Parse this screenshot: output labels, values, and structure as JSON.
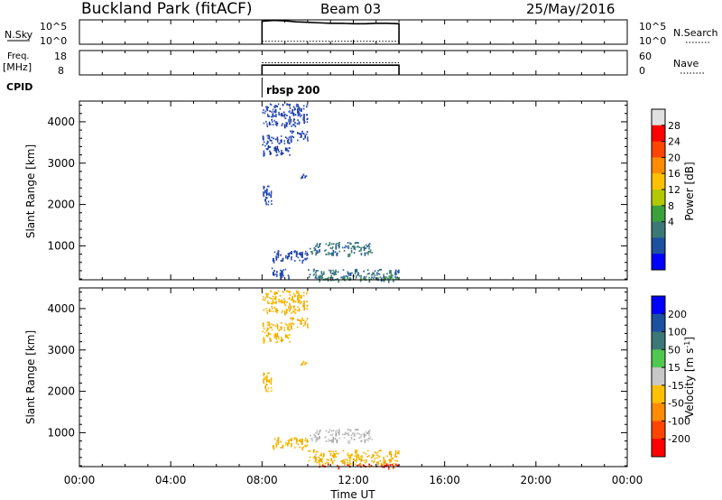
{
  "header": {
    "station": "Buckland Park (fitACF)",
    "beam": "Beam 03",
    "date": "25/May/2016"
  },
  "noise_panel": {
    "left_label": "N.Sky",
    "right_label": "N.Search",
    "left_ticks": [
      "10^5",
      "10^0"
    ],
    "right_ticks": [
      "10^5",
      "10^0"
    ]
  },
  "freq_panel": {
    "left_label_line1": "Freq.",
    "left_label_line2": "[MHz]",
    "right_label": "Nave",
    "left_ticks": [
      "18",
      "8"
    ],
    "right_ticks": [
      "60",
      "0"
    ]
  },
  "cpid_panel": {
    "label": "CPID",
    "program": "rbsp 200"
  },
  "x_axis": {
    "label": "Time UT",
    "ticks": [
      "00:00",
      "04:00",
      "08:00",
      "12:00",
      "16:00",
      "20:00",
      "00:00"
    ]
  },
  "chart_data": [
    {
      "type": "scatter",
      "panel": "power",
      "xlabel": "Time UT",
      "ylabel": "Slant Range [km]",
      "xlim": [
        0,
        24
      ],
      "ylim": [
        180,
        4500
      ],
      "yticks": [
        "1000",
        "2000",
        "3000",
        "4000"
      ],
      "colorbar": {
        "label": "Power [dB]",
        "ticks": [
          "28",
          "24",
          "20",
          "16",
          "12",
          "8",
          "4"
        ],
        "colors": [
          "#e0e0e0",
          "#ff0000",
          "#ff4500",
          "#ff8c00",
          "#ffc000",
          "#b4c800",
          "#3ca03c",
          "#3c7878",
          "#1e50a0",
          "#0000ff"
        ]
      },
      "clusters": [
        {
          "x0": 8.0,
          "x1": 10.0,
          "y0": 3900,
          "y1": 4450,
          "level": "blue"
        },
        {
          "x0": 8.0,
          "x1": 9.2,
          "y0": 3200,
          "y1": 3700,
          "level": "blue"
        },
        {
          "x0": 9.2,
          "x1": 10.0,
          "y0": 3550,
          "y1": 3800,
          "level": "blue"
        },
        {
          "x0": 9.6,
          "x1": 10.0,
          "y0": 2650,
          "y1": 2750,
          "level": "blue"
        },
        {
          "x0": 8.0,
          "x1": 8.4,
          "y0": 2000,
          "y1": 2500,
          "level": "blue"
        },
        {
          "x0": 8.4,
          "x1": 10.0,
          "y0": 650,
          "y1": 900,
          "level": "blue"
        },
        {
          "x0": 10.0,
          "x1": 12.8,
          "y0": 800,
          "y1": 1100,
          "level": "teal"
        },
        {
          "x0": 8.4,
          "x1": 9.2,
          "y0": 250,
          "y1": 500,
          "level": "blue"
        },
        {
          "x0": 10.0,
          "x1": 14.0,
          "y0": 200,
          "y1": 450,
          "level": "teal"
        },
        {
          "x0": 10.4,
          "x1": 14.0,
          "y0": 180,
          "y1": 260,
          "level": "green"
        }
      ]
    },
    {
      "type": "scatter",
      "panel": "velocity",
      "xlabel": "Time UT",
      "ylabel": "Slant Range [km]",
      "xlim": [
        0,
        24
      ],
      "ylim": [
        180,
        4500
      ],
      "yticks": [
        "1000",
        "2000",
        "3000",
        "4000"
      ],
      "colorbar": {
        "label": "Velocity [m s^-1]",
        "ticks": [
          "200",
          "100",
          "50",
          "15",
          "-15",
          "-50",
          "-100",
          "-200"
        ],
        "colors": [
          "#0000ff",
          "#1e50a0",
          "#3c7878",
          "#50c850",
          "#c8c8c8",
          "#ffc000",
          "#ff8c00",
          "#ff4500",
          "#ff0000"
        ]
      },
      "clusters": [
        {
          "x0": 8.0,
          "x1": 10.0,
          "y0": 3900,
          "y1": 4450,
          "level": "amber"
        },
        {
          "x0": 8.0,
          "x1": 9.2,
          "y0": 3200,
          "y1": 3700,
          "level": "amber"
        },
        {
          "x0": 9.2,
          "x1": 10.0,
          "y0": 3550,
          "y1": 3800,
          "level": "amber"
        },
        {
          "x0": 9.6,
          "x1": 10.0,
          "y0": 2650,
          "y1": 2750,
          "level": "amber"
        },
        {
          "x0": 8.0,
          "x1": 8.4,
          "y0": 2000,
          "y1": 2500,
          "level": "amber"
        },
        {
          "x0": 8.4,
          "x1": 10.0,
          "y0": 650,
          "y1": 900,
          "level": "amber"
        },
        {
          "x0": 10.0,
          "x1": 12.8,
          "y0": 800,
          "y1": 1100,
          "level": "gray"
        },
        {
          "x0": 10.0,
          "x1": 14.0,
          "y0": 250,
          "y1": 600,
          "level": "amber"
        },
        {
          "x0": 10.4,
          "x1": 14.0,
          "y0": 180,
          "y1": 260,
          "level": "red"
        }
      ]
    }
  ],
  "noise_series": {
    "x_start": 8.0,
    "x_end": 14.0,
    "sky_level_log": [
      4.7,
      4.9,
      4.8,
      4.6,
      4.5,
      4.4,
      4.3,
      4.3,
      4.2,
      4.2,
      4.3,
      4.3,
      4.2
    ],
    "search_level_log": 0.6
  },
  "freq_series": {
    "x_start": 8.0,
    "x_end": 14.0,
    "freq_mhz": 12,
    "nave": 30
  }
}
